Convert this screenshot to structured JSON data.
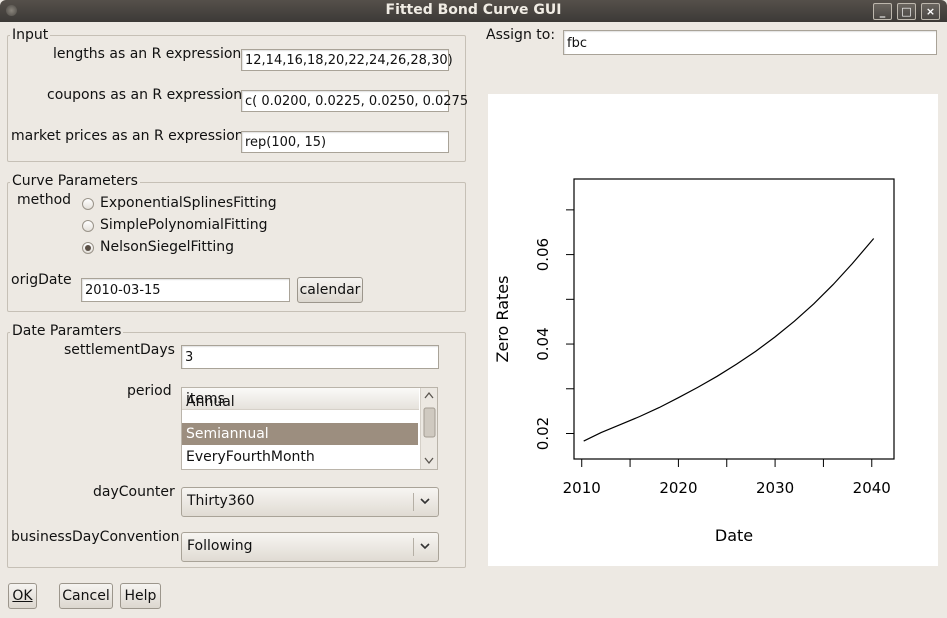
{
  "window": {
    "title": "Fitted Bond Curve GUI"
  },
  "input": {
    "frame_label": "Input",
    "lengths_label": "lengths as an R expression",
    "lengths_value": "12,14,16,18,20,22,24,26,28,30)",
    "coupons_label": "coupons as an R expression",
    "coupons_value": "c( 0.0200, 0.0225, 0.0250, 0.0275",
    "prices_label": "market prices as an R expression",
    "prices_value": "rep(100, 15)"
  },
  "assign": {
    "label": "Assign to:",
    "value": "fbc"
  },
  "curve_params": {
    "frame_label": "Curve Parameters",
    "method_label": "method",
    "methods": [
      {
        "label": "ExponentialSplinesFitting",
        "selected": false
      },
      {
        "label": "SimplePolynomialFitting",
        "selected": false
      },
      {
        "label": "NelsonSiegelFitting",
        "selected": true
      }
    ],
    "origdate_label": "origDate",
    "origdate_value": "2010-03-15",
    "calendar_button": "calendar"
  },
  "date_params": {
    "frame_label": "Date Paramters",
    "settlement_label": "settlementDays",
    "settlement_value": "3",
    "period_label": "period",
    "period_header": "items",
    "period_items": [
      "Annual",
      "Semiannual",
      "EveryFourthMonth"
    ],
    "period_selected": "Semiannual",
    "daycounter_label": "dayCounter",
    "daycounter_value": "Thirty360",
    "bdc_label": "businessDayConvention",
    "bdc_value": "Following"
  },
  "buttons": {
    "ok": "OK",
    "cancel": "Cancel",
    "help": "Help"
  },
  "icons": {
    "window_menu": "window-menu-icon",
    "minimize": "minimize-icon",
    "maximize": "maximize-icon",
    "close": "close-icon",
    "combo_arrow": "chevron-down-icon"
  },
  "chart_data": {
    "type": "line",
    "title": "",
    "xlabel": "Date",
    "ylabel": "Zero Rates",
    "x_ticks": [
      2010,
      2020,
      2030,
      2040
    ],
    "y_ticks": [
      "0.02",
      "0.04",
      "0.06"
    ],
    "xlim": [
      2009.2,
      2042.3
    ],
    "ylim": [
      0.0143,
      0.0769
    ],
    "grid": false,
    "series": [
      {
        "x": [
          2010.2,
          2012,
          2014,
          2016,
          2018,
          2020,
          2022,
          2024,
          2026,
          2028,
          2030,
          2032,
          2034,
          2036,
          2038,
          2040.2
        ],
        "values": [
          0.0183,
          0.0202,
          0.022,
          0.0238,
          0.0258,
          0.028,
          0.0303,
          0.0328,
          0.0355,
          0.0384,
          0.0416,
          0.0451,
          0.049,
          0.0533,
          0.058,
          0.0636
        ]
      }
    ]
  }
}
